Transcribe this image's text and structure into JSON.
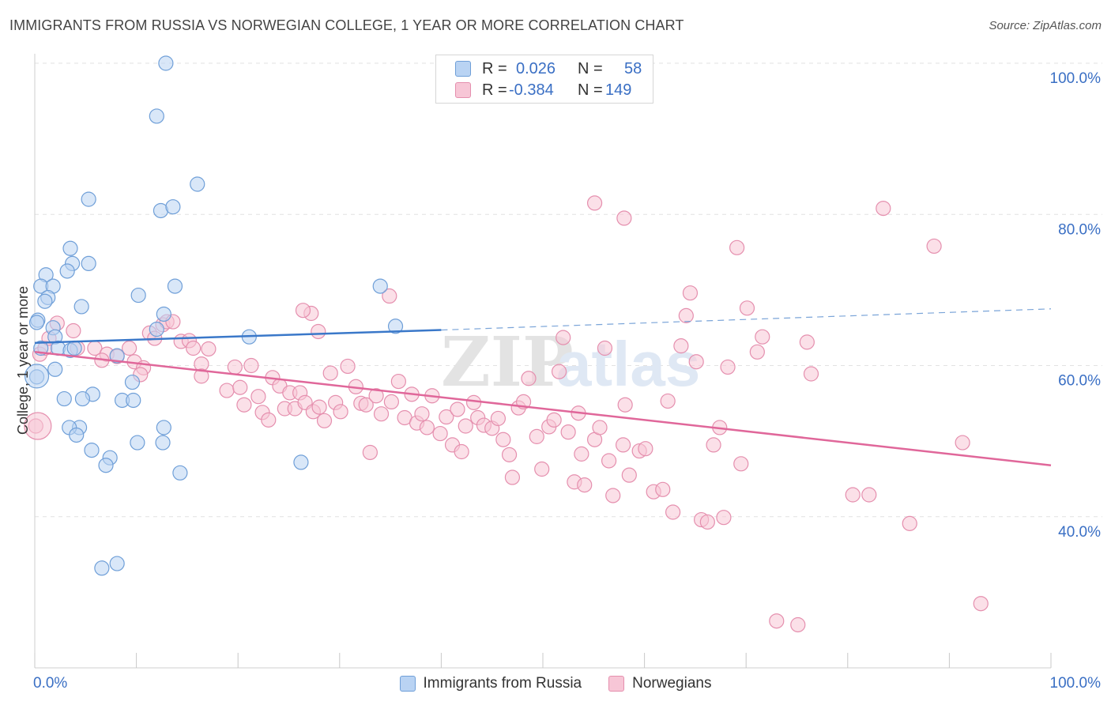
{
  "title": "IMMIGRANTS FROM RUSSIA VS NORWEGIAN COLLEGE, 1 YEAR OR MORE CORRELATION CHART",
  "source": "Source: ZipAtlas.com",
  "watermark": {
    "zip": "ZIP",
    "atlas": "atlas"
  },
  "stats_legend": {
    "r_label": "R =",
    "n_label": "N =",
    "rows": [
      {
        "r": "0.026",
        "n": "58",
        "color": "#6f9fd8"
      },
      {
        "r": "-0.384",
        "n": "149",
        "color": "#e58fae"
      }
    ]
  },
  "chart_data": {
    "type": "scatter",
    "title": "IMMIGRANTS FROM RUSSIA VS NORWEGIAN COLLEGE, 1 YEAR OR MORE CORRELATION CHART",
    "xlabel": "",
    "ylabel": "College, 1 year or more",
    "xlim": [
      0,
      100
    ],
    "ylim": [
      20,
      100
    ],
    "x_tick_labels": [
      "0.0%",
      "100.0%"
    ],
    "y_tick_labels": [
      "40.0%",
      "60.0%",
      "80.0%",
      "100.0%"
    ],
    "y_ticks": [
      40,
      60,
      80,
      100
    ],
    "grid": true,
    "legend_position": "bottom",
    "series": [
      {
        "name": "Immigrants from Russia",
        "color": "#6f9fd8",
        "fill": "#b9d3f3",
        "trend": {
          "x0": 0,
          "y0": 63.0,
          "x1": 40,
          "y1": 64.7,
          "x_dash_end": 100,
          "y_dash_end": 67.5
        },
        "points": [
          [
            12.9,
            100
          ],
          [
            12.0,
            93
          ],
          [
            5.3,
            82
          ],
          [
            16.0,
            84
          ],
          [
            12.4,
            80.5
          ],
          [
            13.6,
            81
          ],
          [
            3.5,
            75.5
          ],
          [
            3.7,
            73.5
          ],
          [
            5.3,
            73.5
          ],
          [
            3.2,
            72.5
          ],
          [
            1.1,
            72
          ],
          [
            0.6,
            70.5
          ],
          [
            1.8,
            70.5
          ],
          [
            1.3,
            69
          ],
          [
            10.2,
            69.3
          ],
          [
            13.8,
            70.5
          ],
          [
            34.0,
            70.5
          ],
          [
            1.0,
            68.5
          ],
          [
            4.6,
            67.8
          ],
          [
            12.7,
            66.8
          ],
          [
            0.3,
            66
          ],
          [
            0.2,
            65.7
          ],
          [
            1.8,
            65
          ],
          [
            12.0,
            64.8
          ],
          [
            35.5,
            65.2
          ],
          [
            2.0,
            63.8
          ],
          [
            21.1,
            63.8
          ],
          [
            0.6,
            62.3
          ],
          [
            2.3,
            62.3
          ],
          [
            3.5,
            62
          ],
          [
            3.9,
            62.3
          ],
          [
            8.1,
            61.3
          ],
          [
            2.0,
            59.5
          ],
          [
            0.2,
            58.5
          ],
          [
            9.6,
            57.8
          ],
          [
            5.7,
            56.2
          ],
          [
            2.9,
            55.6
          ],
          [
            4.7,
            55.6
          ],
          [
            8.6,
            55.4
          ],
          [
            9.7,
            55.4
          ],
          [
            4.4,
            51.8
          ],
          [
            12.7,
            51.8
          ],
          [
            3.4,
            51.8
          ],
          [
            4.1,
            50.8
          ],
          [
            10.1,
            49.8
          ],
          [
            12.6,
            49.8
          ],
          [
            5.6,
            48.8
          ],
          [
            7.4,
            47.8
          ],
          [
            7.0,
            46.8
          ],
          [
            14.3,
            45.8
          ],
          [
            26.2,
            47.2
          ],
          [
            8.1,
            33.8
          ],
          [
            6.6,
            33.2
          ]
        ]
      },
      {
        "name": "Norwegians",
        "color": "#e58fae",
        "fill": "#f7c6d6",
        "trend": {
          "x0": 0,
          "y0": 61.8,
          "x1": 100,
          "y1": 46.8
        },
        "points": [
          [
            0.1,
            52
          ],
          [
            0.5,
            61.5
          ],
          [
            1.0,
            62.3
          ],
          [
            1.4,
            63.6
          ],
          [
            2.2,
            65.6
          ],
          [
            3.8,
            64.6
          ],
          [
            4.2,
            62.3
          ],
          [
            5.9,
            62.3
          ],
          [
            7.1,
            61.5
          ],
          [
            6.6,
            60.7
          ],
          [
            8.1,
            61.2
          ],
          [
            9.3,
            62.3
          ],
          [
            9.8,
            60.5
          ],
          [
            10.7,
            59.7
          ],
          [
            10.4,
            58.8
          ],
          [
            11.3,
            64.3
          ],
          [
            11.8,
            63.6
          ],
          [
            12.6,
            65.4
          ],
          [
            13.0,
            65.8
          ],
          [
            13.6,
            65.8
          ],
          [
            14.4,
            63.2
          ],
          [
            15.2,
            63.3
          ],
          [
            15.6,
            62.3
          ],
          [
            16.4,
            60.2
          ],
          [
            17.1,
            62.2
          ],
          [
            16.4,
            58.6
          ],
          [
            18.9,
            56.7
          ],
          [
            19.7,
            59.8
          ],
          [
            20.2,
            57.1
          ],
          [
            20.6,
            54.8
          ],
          [
            21.3,
            60.0
          ],
          [
            22.0,
            55.9
          ],
          [
            22.4,
            53.8
          ],
          [
            23.0,
            52.8
          ],
          [
            23.4,
            58.4
          ],
          [
            24.1,
            57.3
          ],
          [
            24.6,
            54.3
          ],
          [
            25.1,
            56.4
          ],
          [
            25.6,
            54.3
          ],
          [
            26.1,
            56.4
          ],
          [
            26.6,
            55.1
          ],
          [
            27.4,
            53.9
          ],
          [
            28.0,
            54.5
          ],
          [
            28.5,
            52.7
          ],
          [
            29.1,
            59.0
          ],
          [
            29.6,
            55.1
          ],
          [
            30.1,
            53.9
          ],
          [
            30.8,
            59.9
          ],
          [
            31.6,
            57.2
          ],
          [
            32.1,
            55.0
          ],
          [
            32.6,
            54.8
          ],
          [
            33.0,
            48.5
          ],
          [
            33.6,
            56.0
          ],
          [
            34.1,
            53.6
          ],
          [
            35.1,
            55.2
          ],
          [
            35.8,
            57.9
          ],
          [
            36.4,
            53.1
          ],
          [
            37.1,
            56.2
          ],
          [
            37.6,
            52.4
          ],
          [
            38.1,
            53.6
          ],
          [
            38.6,
            51.8
          ],
          [
            39.1,
            56.0
          ],
          [
            39.9,
            51.0
          ],
          [
            40.5,
            53.2
          ],
          [
            41.1,
            49.5
          ],
          [
            41.6,
            54.2
          ],
          [
            42.0,
            48.6
          ],
          [
            42.4,
            52.0
          ],
          [
            43.2,
            55.1
          ],
          [
            43.6,
            53.1
          ],
          [
            44.2,
            52.1
          ],
          [
            45.0,
            51.7
          ],
          [
            45.6,
            53.0
          ],
          [
            46.1,
            50.2
          ],
          [
            46.7,
            48.2
          ],
          [
            47.0,
            45.2
          ],
          [
            47.6,
            54.4
          ],
          [
            48.1,
            55.2
          ],
          [
            48.6,
            58.3
          ],
          [
            49.4,
            50.6
          ],
          [
            49.9,
            46.3
          ],
          [
            50.6,
            51.9
          ],
          [
            51.1,
            52.8
          ],
          [
            51.6,
            59.2
          ],
          [
            52.0,
            63.7
          ],
          [
            52.5,
            51.2
          ],
          [
            53.1,
            44.6
          ],
          [
            53.5,
            53.7
          ],
          [
            53.8,
            48.3
          ],
          [
            54.1,
            44.2
          ],
          [
            55.1,
            50.2
          ],
          [
            55.6,
            51.8
          ],
          [
            56.1,
            62.3
          ],
          [
            56.5,
            47.4
          ],
          [
            56.9,
            42.8
          ],
          [
            57.9,
            49.5
          ],
          [
            58.1,
            54.8
          ],
          [
            58.5,
            45.5
          ],
          [
            59.5,
            48.7
          ],
          [
            60.1,
            49.0
          ],
          [
            60.9,
            43.3
          ],
          [
            61.8,
            43.6
          ],
          [
            62.3,
            55.3
          ],
          [
            62.8,
            40.6
          ],
          [
            63.6,
            62.6
          ],
          [
            64.1,
            66.6
          ],
          [
            64.5,
            69.6
          ],
          [
            65.1,
            60.5
          ],
          [
            65.6,
            39.6
          ],
          [
            66.2,
            39.3
          ],
          [
            66.8,
            49.5
          ],
          [
            67.4,
            51.8
          ],
          [
            67.8,
            39.9
          ],
          [
            68.2,
            59.8
          ],
          [
            69.5,
            47.0
          ],
          [
            69.1,
            75.6
          ],
          [
            70.1,
            67.6
          ],
          [
            71.1,
            61.8
          ],
          [
            71.6,
            63.8
          ],
          [
            73.0,
            26.2
          ],
          [
            75.1,
            25.7
          ],
          [
            76.0,
            63.1
          ],
          [
            76.4,
            58.9
          ],
          [
            80.5,
            42.9
          ],
          [
            82.1,
            42.9
          ],
          [
            83.5,
            80.8
          ],
          [
            86.1,
            39.1
          ],
          [
            88.5,
            75.8
          ],
          [
            91.3,
            49.8
          ],
          [
            93.1,
            28.5
          ],
          [
            34.9,
            69.2
          ],
          [
            27.2,
            66.9
          ],
          [
            26.4,
            67.3
          ],
          [
            27.9,
            64.5
          ],
          [
            55.1,
            81.5
          ],
          [
            58.0,
            79.5
          ]
        ]
      }
    ]
  }
}
